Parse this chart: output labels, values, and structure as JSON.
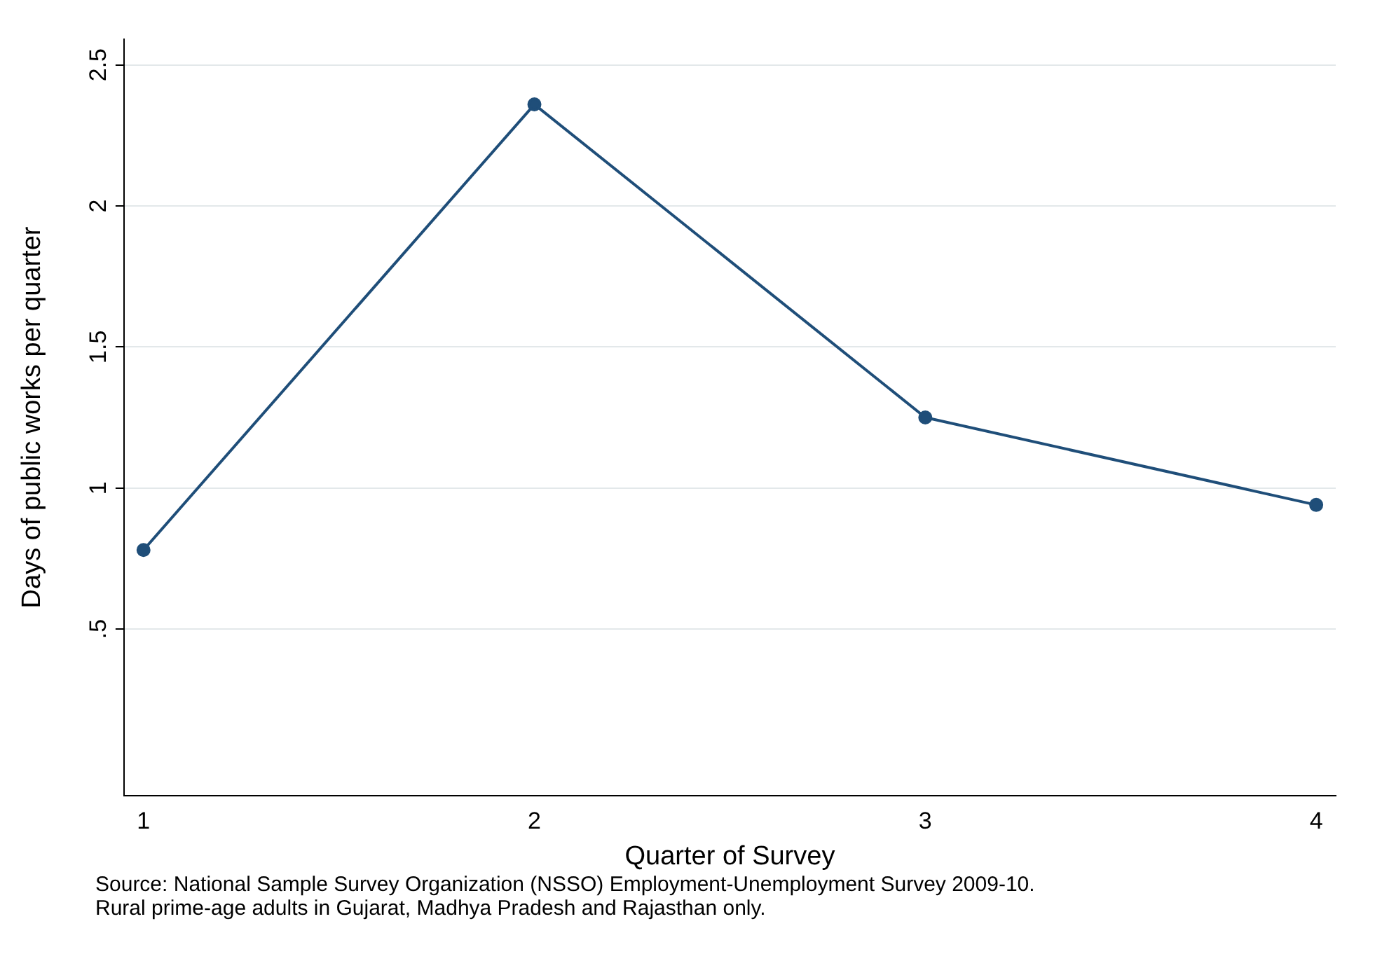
{
  "chart_data": {
    "type": "line",
    "xlabel": "Quarter of Survey",
    "ylabel": "Days of public works per quarter",
    "x": [
      1,
      2,
      3,
      4
    ],
    "series": [
      {
        "color": "#1f4e79",
        "values": [
          0.78,
          2.36,
          1.25,
          0.94
        ]
      }
    ],
    "xlim": [
      0.95,
      4.05
    ],
    "xticks": [
      1,
      2,
      3,
      4
    ],
    "ylim": [
      -0.09,
      2.59
    ],
    "yticks": [
      {
        "value": 0.5,
        "label": ".5"
      },
      1,
      1.5,
      2,
      2.5
    ],
    "grid": "y",
    "marker": "circle",
    "line_style": "solid",
    "legend": false,
    "annotations": [
      "Source: National Sample Survey Organization (NSSO) Employment-Unemployment Survey 2009-10.",
      "Rural prime-age adults in Gujarat, Madhya Pradesh and Rajasthan only."
    ]
  }
}
